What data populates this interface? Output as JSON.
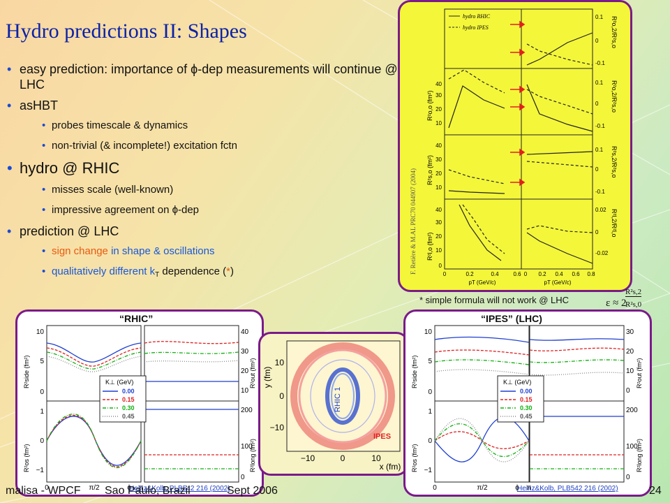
{
  "slide": {
    "title": "Hydro predictions II: Shapes",
    "page_number": "24",
    "footer_left": "malisa - WPCF",
    "footer_mid": "Sao Paulo, Brazil",
    "footer_date": "Sept 2006"
  },
  "bullets": [
    {
      "level": 1,
      "text": "easy prediction: importance of ϕ-dep measurements will continue @ LHC"
    },
    {
      "level": 1,
      "text": "asHBT"
    },
    {
      "level": 2,
      "text": "probes timescale & dynamics"
    },
    {
      "level": 2,
      "text": "non-trivial (& incomplete!) excitation fctn"
    },
    {
      "level": 1,
      "big": true,
      "text": "hydro @ RHIC"
    },
    {
      "level": 2,
      "text": "misses scale (well-known)"
    },
    {
      "level": 2,
      "text": "impressive agreement on ϕ-dep"
    },
    {
      "level": 1,
      "text": "prediction @ LHC"
    }
  ],
  "bullet_special": {
    "sign_change": "sign change",
    "shape_rest": " in shape & oscillations",
    "qual": "qualitatively different k",
    "qual_sub": "T",
    "dep": " dependence (",
    "star": "*",
    "close": ")"
  },
  "top_figure": {
    "legend": [
      "hydro RHIC",
      "hydro IPES"
    ],
    "credit": "F. Retière & M.AL PRC70 044907 (2004)",
    "left_ylabels": [
      "R²o,o (fm²)",
      "R²s,o (fm²)",
      "R²l,o (fm²)"
    ],
    "right_ylabels": [
      "R²o,2/R²s,o",
      "R²o,2/R²s,o",
      "R²s,2/R²s,o",
      "R²l,2/R²l,o"
    ],
    "left_ticks": [
      [
        "40",
        "30",
        "20",
        "10"
      ],
      [
        "40",
        "30",
        "20",
        "10"
      ],
      [
        "40",
        "30",
        "20",
        "10",
        "0"
      ]
    ],
    "right_ticks": [
      [
        "0.1",
        "0",
        "-0.1"
      ],
      [
        "0.1",
        "0",
        "-0.1"
      ],
      [
        "0.1",
        "0",
        "-0.1"
      ],
      [
        "0.02",
        "0",
        "-0.02"
      ]
    ],
    "xticks_left": [
      "0",
      "0.2",
      "0.4",
      "0.6"
    ],
    "xticks_right": [
      "0",
      "0.2",
      "0.4",
      "0.6",
      "0.8"
    ],
    "xlabel": "pT (GeV/c)"
  },
  "note": "* simple formula will not work @ LHC",
  "formula": {
    "eps": "ε ≈ 2",
    "num": "R²s,2",
    "den": "R²s,0"
  },
  "left_panel": {
    "caption": "“RHIC”",
    "reference": "Heinz&Kolb, PLB542 216 (2002)",
    "ylabels": [
      "R²side (fm²)",
      "R²os (fm²)",
      "R²out (fm²)",
      "R²long (fm²)"
    ],
    "left_ticks_top": [
      "10",
      "5",
      "0"
    ],
    "left_ticks_bot": [
      "1",
      "0",
      "−1"
    ],
    "right_ticks_top": [
      "40",
      "30",
      "20",
      "10"
    ],
    "right_ticks_bot": [
      "200",
      "100",
      "0"
    ],
    "xticks": [
      "0",
      "π/2",
      "π"
    ],
    "xlabel": "ϕ",
    "legend_title": "K⊥ (GeV)",
    "legend": [
      "0.00",
      "0.15",
      "0.30",
      "0.45"
    ]
  },
  "right_panel": {
    "caption": "“IPES” (LHC)",
    "reference": "Heinz&Kolb, PLB542 216 (2002)",
    "ylabels": [
      "R²side (fm²)",
      "R²os (fm²)",
      "R²out (fm²)",
      "R²long (fm²)"
    ],
    "left_ticks_top": [
      "10",
      "5",
      "0"
    ],
    "left_ticks_bot": [
      "1",
      "0",
      "−1"
    ],
    "right_ticks_top": [
      "30",
      "20",
      "10",
      "0"
    ],
    "right_ticks_bot": [
      "200",
      "100",
      "0"
    ],
    "xticks": [
      "0",
      "π/2",
      "π"
    ],
    "xlabel": "ϕ",
    "legend_title": "K⊥ (GeV)",
    "legend": [
      "0.00",
      "0.15",
      "0.30",
      "0.45"
    ]
  },
  "middle_panel": {
    "ylabel": "y (fm)",
    "xlabel": "x (fm)",
    "yticks": [
      "10",
      "0",
      "−10"
    ],
    "xticks": [
      "−10",
      "0",
      "10"
    ],
    "label_rhic": "RHIC 1",
    "label_ipes": "IPES"
  },
  "colors": {
    "title": "#0b22a8",
    "panel_border": "#7a1a8a",
    "series": [
      "#1f3fd0",
      "#e02020",
      "#10b010",
      "#888888"
    ],
    "top_fig_bg": "#f4f63a"
  }
}
